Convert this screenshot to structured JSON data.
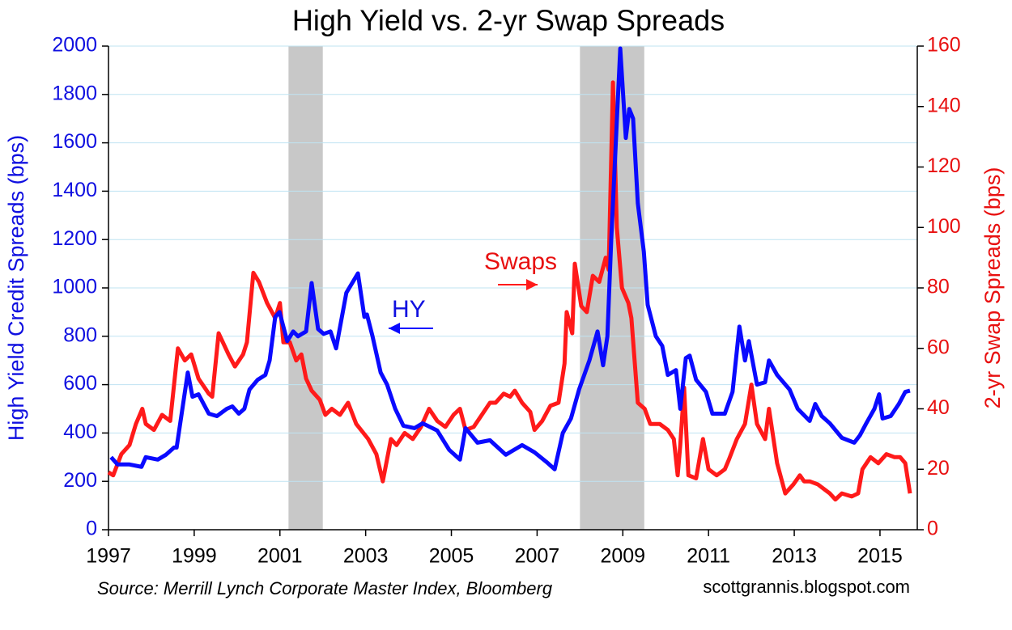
{
  "chart_data": {
    "type": "line",
    "title": "High Yield vs. 2-yr Swap Spreads",
    "y_label": "High Yield Credit Spreads (bps)",
    "y2_label": "2-yr Swap Spreads (bps)",
    "source": "Source: Merrill Lynch Corporate Master Index, Bloomberg",
    "credit": "scottgrannis.blogspot.com",
    "xlim": [
      1997,
      2015.87
    ],
    "xticks": [
      1997,
      1999,
      2001,
      2003,
      2005,
      2007,
      2009,
      2011,
      2013,
      2015
    ],
    "ylim": [
      0,
      2000
    ],
    "yticks": [
      0,
      200,
      400,
      600,
      800,
      1000,
      1200,
      1400,
      1600,
      1800,
      2000
    ],
    "y2lim": [
      0,
      160
    ],
    "y2ticks": [
      0,
      20,
      40,
      60,
      80,
      100,
      120,
      140,
      160
    ],
    "grid": true,
    "recession_color": "#c8c8c8",
    "recessions": [
      [
        2001.2,
        2002.0
      ],
      [
        2008.0,
        2009.5
      ]
    ],
    "series": [
      {
        "name": "HY",
        "color": "#0a0aff",
        "x": [
          1997.06,
          1997.21,
          1997.49,
          1997.77,
          1997.87,
          1998.15,
          1998.34,
          1998.53,
          1998.59,
          1998.85,
          1998.96,
          1999.1,
          1999.34,
          1999.53,
          1999.76,
          1999.89,
          2000.04,
          2000.17,
          2000.29,
          2000.48,
          2000.66,
          2000.76,
          2000.89,
          2000.99,
          2001.17,
          2001.31,
          2001.42,
          2001.61,
          2001.74,
          2001.89,
          2002.02,
          2002.18,
          2002.31,
          2002.55,
          2002.82,
          2002.97,
          2003.03,
          2003.16,
          2003.35,
          2003.5,
          2003.69,
          2003.88,
          2004.14,
          2004.33,
          2004.67,
          2004.95,
          2005.2,
          2005.33,
          2005.61,
          2005.9,
          2006.27,
          2006.65,
          2006.94,
          2007.22,
          2007.41,
          2007.6,
          2007.79,
          2007.98,
          2008.22,
          2008.41,
          2008.54,
          2008.64,
          2008.73,
          2008.94,
          2009.07,
          2009.15,
          2009.24,
          2009.35,
          2009.49,
          2009.58,
          2009.77,
          2009.92,
          2010.05,
          2010.24,
          2010.34,
          2010.47,
          2010.56,
          2010.71,
          2010.94,
          2011.09,
          2011.38,
          2011.56,
          2011.72,
          2011.85,
          2011.94,
          2012.13,
          2012.32,
          2012.41,
          2012.6,
          2012.89,
          2013.08,
          2013.36,
          2013.49,
          2013.64,
          2013.83,
          2014.11,
          2014.4,
          2014.53,
          2014.68,
          2014.87,
          2014.98,
          2015.06,
          2015.25,
          2015.44,
          2015.59,
          2015.7
        ],
        "values": [
          300,
          270,
          270,
          260,
          300,
          290,
          310,
          340,
          340,
          650,
          550,
          560,
          480,
          470,
          500,
          510,
          480,
          500,
          580,
          620,
          640,
          700,
          880,
          900,
          780,
          820,
          800,
          820,
          1020,
          830,
          810,
          820,
          750,
          980,
          1060,
          880,
          890,
          800,
          650,
          600,
          500,
          430,
          420,
          440,
          410,
          330,
          290,
          420,
          360,
          370,
          310,
          350,
          320,
          280,
          250,
          400,
          460,
          580,
          700,
          820,
          680,
          800,
          1200,
          1990,
          1620,
          1740,
          1700,
          1350,
          1150,
          930,
          800,
          760,
          640,
          660,
          500,
          710,
          720,
          620,
          570,
          480,
          480,
          570,
          840,
          700,
          780,
          600,
          610,
          700,
          640,
          580,
          500,
          450,
          520,
          470,
          440,
          380,
          360,
          390,
          440,
          500,
          560,
          460,
          470,
          520,
          570,
          575
        ]
      },
      {
        "name": "Swaps",
        "color": "#ff1a1a",
        "axis": "y2",
        "x": [
          1997.0,
          1997.11,
          1997.3,
          1997.49,
          1997.64,
          1997.79,
          1997.87,
          1998.06,
          1998.25,
          1998.44,
          1998.62,
          1998.78,
          1998.93,
          1999.1,
          1999.34,
          1999.42,
          1999.57,
          1999.8,
          1999.95,
          2000.14,
          2000.23,
          2000.38,
          2000.51,
          2000.7,
          2000.89,
          2001.0,
          2001.08,
          2001.23,
          2001.38,
          2001.5,
          2001.61,
          2001.74,
          2001.93,
          2002.06,
          2002.21,
          2002.4,
          2002.59,
          2002.78,
          2003.06,
          2003.25,
          2003.4,
          2003.59,
          2003.72,
          2003.91,
          2004.1,
          2004.29,
          2004.48,
          2004.67,
          2004.86,
          2005.05,
          2005.2,
          2005.33,
          2005.52,
          2005.71,
          2005.9,
          2006.03,
          2006.22,
          2006.37,
          2006.48,
          2006.65,
          2006.84,
          2006.94,
          2007.12,
          2007.31,
          2007.5,
          2007.64,
          2007.69,
          2007.82,
          2007.88,
          2008.03,
          2008.16,
          2008.3,
          2008.45,
          2008.6,
          2008.67,
          2008.77,
          2008.86,
          2008.98,
          2009.13,
          2009.2,
          2009.35,
          2009.51,
          2009.64,
          2009.86,
          2010.05,
          2010.19,
          2010.28,
          2010.34,
          2010.43,
          2010.53,
          2010.71,
          2010.87,
          2011.0,
          2011.19,
          2011.38,
          2011.47,
          2011.66,
          2011.85,
          2012.0,
          2012.13,
          2012.32,
          2012.41,
          2012.6,
          2012.79,
          2012.98,
          2013.13,
          2013.23,
          2013.36,
          2013.55,
          2013.83,
          2013.96,
          2014.11,
          2014.34,
          2014.49,
          2014.59,
          2014.78,
          2014.96,
          2015.15,
          2015.34,
          2015.47,
          2015.59,
          2015.7
        ],
        "values": [
          19,
          18,
          25,
          28,
          35,
          40,
          35,
          33,
          38,
          36,
          60,
          56,
          58,
          50,
          45,
          44,
          65,
          58,
          54,
          58,
          62,
          85,
          82,
          75,
          70,
          75,
          62,
          62,
          56,
          58,
          50,
          46,
          43,
          38,
          40,
          38,
          42,
          35,
          30,
          25,
          16,
          30,
          28,
          32,
          30,
          34,
          40,
          36,
          34,
          38,
          40,
          33,
          34,
          38,
          42,
          42,
          45,
          44,
          46,
          42,
          39,
          33,
          36,
          41,
          42,
          55,
          72,
          65,
          88,
          74,
          72,
          84,
          82,
          90,
          86,
          148,
          100,
          80,
          75,
          70,
          42,
          40,
          35,
          35,
          33,
          30,
          18,
          28,
          47,
          18,
          17,
          30,
          20,
          18,
          20,
          23,
          30,
          35,
          48,
          35,
          30,
          40,
          22,
          12,
          15,
          18,
          16,
          16,
          15,
          12,
          10,
          12,
          11,
          12,
          20,
          24,
          22,
          25,
          24,
          24,
          22,
          12
        ]
      }
    ]
  }
}
